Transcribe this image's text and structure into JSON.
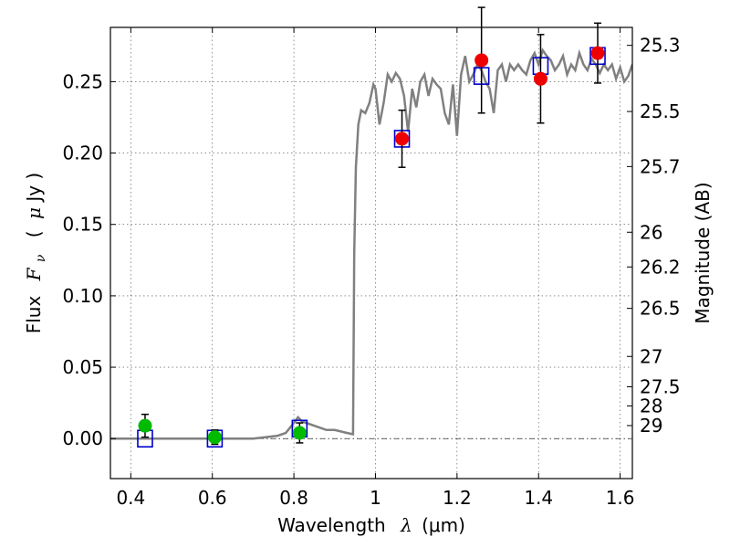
{
  "chart_data": {
    "type": "scatter",
    "title": "",
    "xlabel_text": "Wavelength",
    "xlabel_symbol": "λ",
    "xlabel_unit": "(μm)",
    "ylabel_text": "Flux",
    "ylabel_symbol": "F",
    "ylabel_symbol_sub": "ν",
    "ylabel_unit_open": "(",
    "ylabel_unit_mu": "μ",
    "ylabel_unit_rest": "Jy )",
    "y2label": "Magnitude (AB)",
    "xlim": [
      0.35,
      1.63
    ],
    "ylim": [
      -0.028,
      0.288
    ],
    "xticks": [
      0.4,
      0.6,
      0.8,
      1.0,
      1.2,
      1.4,
      1.6
    ],
    "xtick_labels": [
      "0.4",
      "0.6",
      "0.8",
      "1",
      "1.2",
      "1.4",
      "1.6"
    ],
    "yticks": [
      0.0,
      0.05,
      0.1,
      0.15,
      0.2,
      0.25
    ],
    "ytick_labels": [
      "0.00",
      "0.05",
      "0.10",
      "0.15",
      "0.20",
      "0.25"
    ],
    "grid": true,
    "y2ticks": [
      {
        "value": 25.3,
        "label": "25.3"
      },
      {
        "value": 25.5,
        "label": "25.5"
      },
      {
        "value": 25.7,
        "label": "25.7"
      },
      {
        "value": 26.0,
        "label": "26"
      },
      {
        "value": 26.2,
        "label": "26.2"
      },
      {
        "value": 26.5,
        "label": "26.5"
      },
      {
        "value": 27.0,
        "label": "27"
      },
      {
        "value": 27.5,
        "label": "27.5"
      },
      {
        "value": 28.0,
        "label": "28"
      },
      {
        "value": 29.0,
        "label": "29"
      }
    ],
    "colors": {
      "model": "#808080",
      "upper_limit_points": "#00bb00",
      "detected_points": "#ee0000",
      "model_photometry": "#0000cc",
      "errorbar": "#000000"
    },
    "model_spectrum": {
      "x": [
        0.35,
        0.4,
        0.5,
        0.6,
        0.7,
        0.76,
        0.78,
        0.8,
        0.81,
        0.82,
        0.84,
        0.86,
        0.88,
        0.9,
        0.93,
        0.945,
        0.948,
        0.952,
        0.958,
        0.965,
        0.975,
        0.985,
        0.995,
        1.0,
        1.01,
        1.02,
        1.03,
        1.04,
        1.05,
        1.06,
        1.07,
        1.08,
        1.09,
        1.1,
        1.11,
        1.12,
        1.13,
        1.14,
        1.15,
        1.16,
        1.17,
        1.18,
        1.19,
        1.2,
        1.21,
        1.22,
        1.23,
        1.24,
        1.25,
        1.26,
        1.27,
        1.28,
        1.29,
        1.3,
        1.31,
        1.32,
        1.33,
        1.34,
        1.35,
        1.36,
        1.37,
        1.38,
        1.39,
        1.4,
        1.41,
        1.42,
        1.43,
        1.44,
        1.45,
        1.46,
        1.47,
        1.48,
        1.49,
        1.5,
        1.51,
        1.52,
        1.53,
        1.54,
        1.55,
        1.56,
        1.57,
        1.58,
        1.59,
        1.6,
        1.61,
        1.62,
        1.63
      ],
      "y": [
        0.0,
        0.0,
        0.0,
        0.0,
        0.0,
        0.002,
        0.004,
        0.011,
        0.015,
        0.012,
        0.01,
        0.008,
        0.006,
        0.006,
        0.004,
        0.003,
        0.13,
        0.19,
        0.22,
        0.23,
        0.228,
        0.235,
        0.248,
        0.245,
        0.22,
        0.235,
        0.255,
        0.25,
        0.256,
        0.252,
        0.24,
        0.215,
        0.245,
        0.232,
        0.25,
        0.255,
        0.24,
        0.252,
        0.248,
        0.245,
        0.228,
        0.22,
        0.248,
        0.212,
        0.255,
        0.268,
        0.25,
        0.255,
        0.262,
        0.258,
        0.25,
        0.245,
        0.228,
        0.258,
        0.262,
        0.25,
        0.262,
        0.258,
        0.262,
        0.258,
        0.255,
        0.265,
        0.27,
        0.262,
        0.272,
        0.268,
        0.265,
        0.258,
        0.262,
        0.268,
        0.255,
        0.262,
        0.258,
        0.27,
        0.262,
        0.258,
        0.266,
        0.262,
        0.256,
        0.262,
        0.258,
        0.262,
        0.252,
        0.26,
        0.25,
        0.254,
        0.262
      ]
    },
    "model_photometry": [
      {
        "x": 0.435,
        "y": 0.0
      },
      {
        "x": 0.606,
        "y": 0.0
      },
      {
        "x": 0.814,
        "y": 0.007
      },
      {
        "x": 1.065,
        "y": 0.21
      },
      {
        "x": 1.26,
        "y": 0.254
      },
      {
        "x": 1.405,
        "y": 0.261
      },
      {
        "x": 1.545,
        "y": 0.268
      }
    ],
    "observed_upper_limits": [
      {
        "x": 0.435,
        "y": 0.009,
        "err": 0.008
      },
      {
        "x": 0.606,
        "y": 0.001,
        "err": 0.005
      },
      {
        "x": 0.814,
        "y": 0.004,
        "err": 0.007
      }
    ],
    "observed_detections": [
      {
        "x": 1.065,
        "y": 0.21,
        "err": 0.02
      },
      {
        "x": 1.26,
        "y": 0.265,
        "err": 0.037
      },
      {
        "x": 1.405,
        "y": 0.252,
        "err": 0.031
      },
      {
        "x": 1.545,
        "y": 0.27,
        "err": 0.021
      }
    ]
  }
}
